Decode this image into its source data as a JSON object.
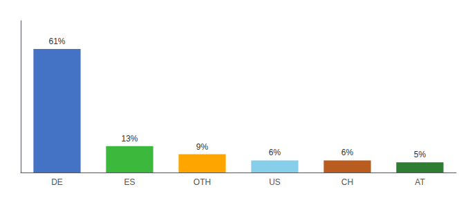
{
  "chart_data": {
    "type": "bar",
    "categories": [
      "DE",
      "ES",
      "OTH",
      "US",
      "CH",
      "AT"
    ],
    "values": [
      61,
      13,
      9,
      6,
      6,
      5
    ],
    "value_labels": [
      "61%",
      "13%",
      "9%",
      "6%",
      "6%",
      "5%"
    ],
    "colors": [
      "#4472C4",
      "#3CB93C",
      "#FFA500",
      "#87CEEB",
      "#B85C20",
      "#2E7D32"
    ],
    "ylim": [
      0,
      75
    ],
    "grid": false,
    "tick_labels": "x",
    "data_labels": true
  }
}
